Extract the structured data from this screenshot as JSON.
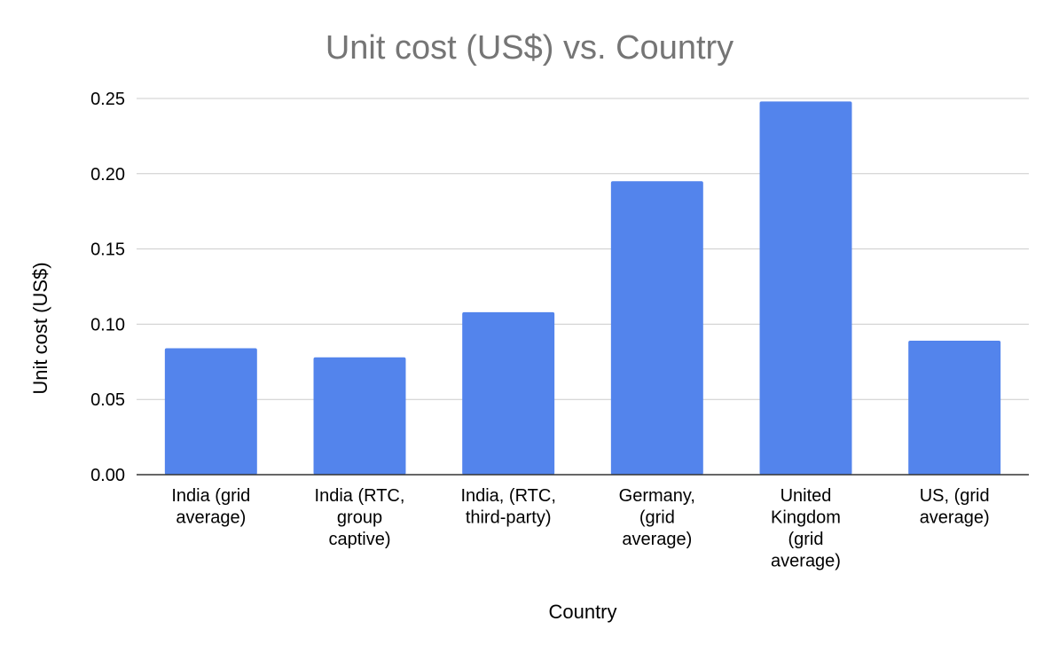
{
  "chart_data": {
    "type": "bar",
    "title": "Unit cost (US$) vs. Country",
    "xlabel": "Country",
    "ylabel": "Unit cost (US$)",
    "categories": [
      "India (grid average)",
      "India (RTC, group captive)",
      "India, (RTC, third-party)",
      "Germany, (grid average)",
      "United Kingdom (grid average)",
      "US, (grid average)"
    ],
    "category_label_lines": [
      [
        "India (grid",
        "average)"
      ],
      [
        "India (RTC,",
        "group",
        "captive)"
      ],
      [
        "India, (RTC,",
        "third-party)"
      ],
      [
        "Germany,",
        "(grid",
        "average)"
      ],
      [
        "United",
        "Kingdom",
        "(grid",
        "average)"
      ],
      [
        "US, (grid",
        "average)"
      ]
    ],
    "values": [
      0.084,
      0.078,
      0.108,
      0.195,
      0.248,
      0.089
    ],
    "ylim": [
      0,
      0.25
    ],
    "yticks": [
      "0.00",
      "0.05",
      "0.10",
      "0.15",
      "0.20",
      "0.25"
    ],
    "ytick_values": [
      0,
      0.05,
      0.1,
      0.15,
      0.2,
      0.25
    ],
    "grid": true,
    "legend": "none",
    "bar_color": "#5384ec"
  }
}
